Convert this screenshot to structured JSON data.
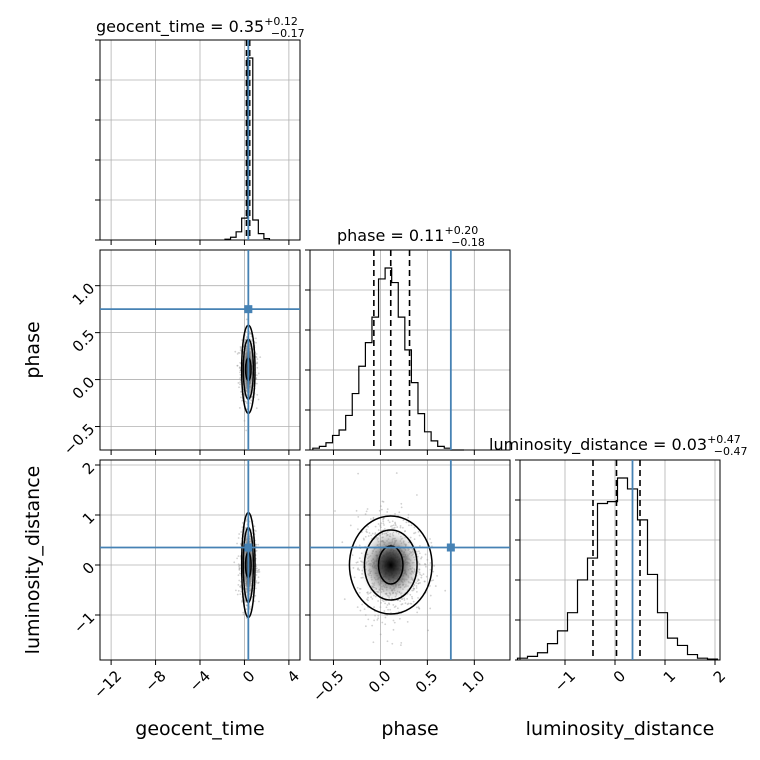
{
  "colors": {
    "truth": "#4682b4",
    "hist": "#000000",
    "grid": "#b0b0b0",
    "points": "#9a9a9a"
  },
  "chart_data": {
    "type": "corner",
    "parameters": [
      "geocent_time",
      "phase",
      "luminosity_distance"
    ],
    "truths": {
      "geocent_time": 0.35,
      "phase": 0.75,
      "luminosity_distance": 0.35
    },
    "titles": {
      "geocent_time": {
        "name": "geocent_time",
        "median": "0.35",
        "plus": "+0.12",
        "minus": "−0.17"
      },
      "phase": {
        "name": "phase",
        "median": "0.11",
        "plus": "+0.20",
        "minus": "−0.18"
      },
      "luminosity_distance": {
        "name": "luminosity_distance",
        "median": "0.03",
        "plus": "+0.47",
        "minus": "−0.47"
      }
    },
    "xlabels": {
      "geocent_time": "geocent_time",
      "phase": "phase",
      "luminosity_distance": "luminosity_distance"
    },
    "ylabels": {
      "phase": "phase",
      "luminosity_distance": "luminosity_distance"
    },
    "ranges": {
      "geocent_time": [
        -13.0,
        5.0
      ],
      "phase": [
        -0.75,
        1.38
      ],
      "luminosity_distance": [
        -1.9,
        2.1
      ]
    },
    "ticks": {
      "geocent_time": [
        -12,
        -8,
        -4,
        0,
        4
      ],
      "phase": [
        -0.5,
        0.0,
        0.5,
        1.0
      ],
      "luminosity_distance_x": [
        -1,
        0,
        1,
        2
      ],
      "luminosity_distance_y": [
        -1,
        0,
        1,
        2
      ]
    },
    "tick_labels": {
      "geocent_time": [
        "−12",
        "−8",
        "−4",
        "0",
        "4"
      ],
      "phase": [
        "−0.5",
        "0.0",
        "0.5",
        "1.0"
      ],
      "luminosity_distance_x": [
        "−1",
        "0",
        "1",
        "2"
      ],
      "luminosity_distance_y": [
        "−1",
        "0",
        "1",
        "2"
      ]
    },
    "quantiles": {
      "geocent_time": [
        0.18,
        0.35,
        0.47
      ],
      "phase": [
        -0.07,
        0.11,
        0.31
      ],
      "luminosity_distance": [
        -0.44,
        0.03,
        0.5
      ]
    },
    "histograms": {
      "geocent_time": {
        "edges": [
          -1.75,
          -1.25,
          -0.75,
          -0.25,
          0.25,
          0.75,
          1.25,
          1.75,
          2.25
        ],
        "values": [
          0.004,
          0.015,
          0.045,
          0.12,
          1.0,
          0.11,
          0.035,
          0.008
        ]
      },
      "phase": {
        "edges": [
          -0.72,
          -0.65,
          -0.58,
          -0.51,
          -0.44,
          -0.37,
          -0.3,
          -0.23,
          -0.16,
          -0.09,
          -0.02,
          0.05,
          0.12,
          0.19,
          0.26,
          0.33,
          0.4,
          0.47,
          0.54,
          0.61,
          0.68,
          0.75,
          0.82,
          0.89
        ],
        "values": [
          0.01,
          0.02,
          0.04,
          0.08,
          0.11,
          0.19,
          0.31,
          0.46,
          0.59,
          0.73,
          0.94,
          1.0,
          0.92,
          0.73,
          0.55,
          0.37,
          0.2,
          0.1,
          0.05,
          0.02,
          0.01,
          0.0,
          0.0
        ]
      },
      "luminosity_distance": {
        "edges": [
          -1.95,
          -1.75,
          -1.55,
          -1.35,
          -1.15,
          -0.95,
          -0.75,
          -0.55,
          -0.35,
          -0.15,
          0.05,
          0.25,
          0.45,
          0.65,
          0.85,
          1.05,
          1.25,
          1.45,
          1.65,
          1.85,
          2.05
        ],
        "values": [
          0.01,
          0.02,
          0.04,
          0.09,
          0.16,
          0.26,
          0.44,
          0.56,
          0.86,
          0.87,
          1.0,
          0.94,
          0.77,
          0.47,
          0.26,
          0.12,
          0.08,
          0.03,
          0.01,
          0.005
        ]
      }
    },
    "density_2d": {
      "phase_vs_geocent_time": {
        "center": [
          0.35,
          0.11
        ],
        "contour_halfwidths": [
          [
            0.25,
            0.12
          ],
          [
            0.45,
            0.32
          ],
          [
            0.6,
            0.47
          ]
        ]
      },
      "luminosity_distance_vs_geocent_time": {
        "center": [
          0.35,
          0.0
        ],
        "contour_halfwidths": [
          [
            0.25,
            0.25
          ],
          [
            0.45,
            0.75
          ],
          [
            0.6,
            1.05
          ]
        ]
      },
      "luminosity_distance_vs_phase": {
        "center": [
          0.11,
          0.0
        ],
        "contour_halfwidths": [
          [
            0.13,
            0.38
          ],
          [
            0.28,
            0.7
          ],
          [
            0.44,
            0.98
          ]
        ]
      }
    },
    "grid": true
  }
}
